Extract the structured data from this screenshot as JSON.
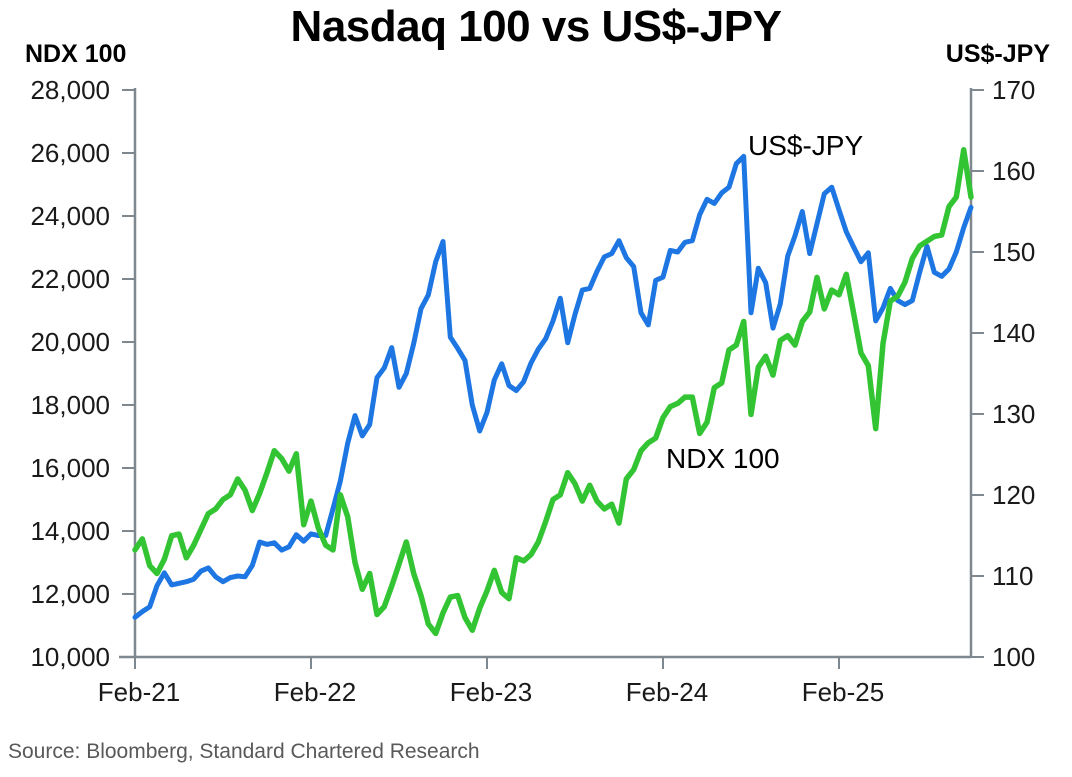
{
  "header": {
    "title": "Nasdaq 100 vs US$-JPY"
  },
  "footer": {
    "source": "Source: Bloomberg, Standard Chartered Research"
  },
  "chart_data": {
    "type": "line",
    "title": "Nasdaq 100 vs US$-JPY",
    "grid": false,
    "legend": "inline-annotations",
    "colors": {
      "ndx_green": "#33c433",
      "usdjpy_blue": "#1d76e2",
      "axis_gray": "#7f878f"
    },
    "x_axis": {
      "tick_labels": [
        "Feb-21",
        "Feb-22",
        "Feb-23",
        "Feb-24",
        "Feb-25"
      ],
      "tick_months": [
        0,
        12,
        24,
        36,
        48
      ],
      "total_months": 57,
      "step_months": 0.5
    },
    "left_axis": {
      "label": "NDX 100",
      "min": 10000,
      "max": 28000,
      "tick_values": [
        28000,
        26000,
        24000,
        22000,
        20000,
        18000,
        16000,
        14000,
        12000,
        10000
      ],
      "tick_labels": [
        "28,000",
        "26,000",
        "24,000",
        "22,000",
        "20,000",
        "18,000",
        "16,000",
        "14,000",
        "12,000",
        "10,000"
      ]
    },
    "right_axis": {
      "label": "US$-JPY",
      "min": 100,
      "max": 170,
      "tick_values": [
        170,
        160,
        150,
        140,
        130,
        120,
        110,
        100
      ],
      "tick_labels": [
        "170",
        "160",
        "150",
        "140",
        "130",
        "120",
        "110",
        "100"
      ]
    },
    "series": [
      {
        "name": "US$-JPY",
        "axis": "right",
        "color": "#1d76e2",
        "stroke_width": 5,
        "values": [
          104.9,
          105.6,
          106.2,
          108.8,
          110.4,
          108.9,
          109.1,
          109.3,
          109.6,
          110.6,
          111.0,
          109.9,
          109.3,
          109.8,
          110.0,
          109.9,
          111.3,
          114.2,
          113.9,
          114.1,
          113.2,
          113.6,
          115.1,
          114.3,
          115.2,
          115.0,
          115.0,
          118.3,
          121.7,
          126.4,
          129.8,
          127.3,
          128.7,
          134.5,
          135.7,
          138.2,
          133.3,
          135.0,
          138.7,
          143.0,
          144.7,
          148.8,
          151.3,
          139.5,
          138.1,
          136.6,
          131.1,
          127.9,
          130.2,
          134.2,
          136.2,
          133.5,
          132.9,
          134.0,
          136.3,
          138.0,
          139.3,
          141.5,
          144.3,
          138.8,
          142.3,
          145.3,
          145.5,
          147.6,
          149.4,
          149.8,
          151.4,
          149.3,
          148.2,
          142.5,
          141.0,
          146.5,
          146.9,
          150.2,
          150.0,
          151.2,
          151.4,
          154.6,
          156.5,
          156.0,
          157.3,
          158.0,
          160.9,
          161.8,
          142.5,
          148.0,
          146.2,
          140.6,
          143.6,
          149.5,
          152.0,
          155.0,
          149.8,
          153.5,
          157.2,
          158.0,
          155.2,
          152.5,
          150.6,
          148.8,
          149.9,
          141.5,
          143.1,
          145.5,
          144.0,
          143.5,
          144.0,
          147.5,
          150.7,
          147.5,
          147.0,
          147.9,
          150.0,
          153.0,
          155.5
        ]
      },
      {
        "name": "NDX 100",
        "axis": "left",
        "color": "#33c433",
        "stroke_width": 5.5,
        "values": [
          13400,
          13750,
          12900,
          12650,
          13100,
          13850,
          13900,
          13150,
          13550,
          14050,
          14550,
          14700,
          15000,
          15150,
          15650,
          15300,
          14650,
          15200,
          15850,
          16550,
          16300,
          15900,
          16450,
          14200,
          14950,
          14100,
          13550,
          13400,
          15150,
          14450,
          13000,
          12150,
          12650,
          11350,
          11600,
          12250,
          12950,
          13650,
          12650,
          11950,
          11050,
          10750,
          11400,
          11900,
          11950,
          11250,
          10850,
          11550,
          12100,
          12750,
          12050,
          11850,
          13150,
          13050,
          13250,
          13650,
          14300,
          15000,
          15150,
          15850,
          15500,
          14950,
          15450,
          14950,
          14700,
          14850,
          14250,
          15650,
          15950,
          16550,
          16800,
          16950,
          17600,
          17950,
          18050,
          18250,
          18250,
          17100,
          17450,
          18550,
          18700,
          19750,
          19900,
          20650,
          17700,
          19200,
          19550,
          18950,
          20050,
          20200,
          19900,
          20650,
          20950,
          22050,
          21050,
          21650,
          21500,
          22150,
          20900,
          19650,
          19250,
          17250,
          19950,
          21300,
          21450,
          21900,
          22650,
          23050,
          23200,
          23350,
          23400,
          24300,
          24600,
          26100,
          24600
        ]
      }
    ]
  }
}
